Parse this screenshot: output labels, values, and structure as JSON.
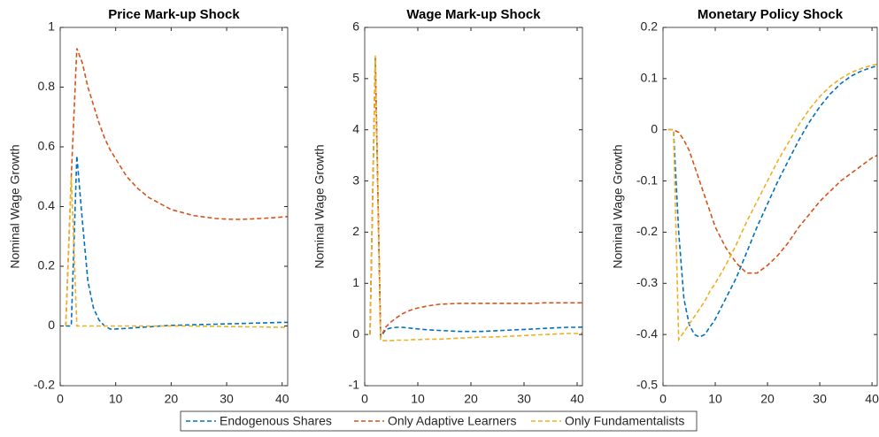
{
  "chart_data": [
    {
      "type": "line",
      "title": "Price Mark-up Shock",
      "ylabel": "Nominal Wage Growth",
      "x": [
        1,
        2,
        3,
        4,
        5,
        6,
        7,
        8,
        9,
        10,
        12,
        14,
        16,
        18,
        20,
        22,
        24,
        26,
        28,
        30,
        32,
        34,
        36,
        38,
        40,
        42
      ],
      "xlim": [
        0,
        41
      ],
      "xticks": [
        0,
        10,
        20,
        30,
        40
      ],
      "ylim": [
        -0.2,
        1
      ],
      "yticks": [
        -0.2,
        0,
        0.2,
        0.4,
        0.6,
        0.8,
        1
      ],
      "series": [
        {
          "name": "Endogenous Shares",
          "color": "#0072bd",
          "values": [
            0,
            0,
            0.57,
            0.35,
            0.15,
            0.06,
            0.02,
            0,
            -0.01,
            -0.01,
            -0.008,
            -0.005,
            -0.003,
            0,
            0.002,
            0.003,
            0.004,
            0.005,
            0.006,
            0.007,
            0.008,
            0.009,
            0.01,
            0.011,
            0.012,
            0.012
          ]
        },
        {
          "name": "Only Adaptive Learners",
          "color": "#d95319",
          "values": [
            0,
            0.5,
            0.93,
            0.88,
            0.8,
            0.74,
            0.68,
            0.63,
            0.59,
            0.56,
            0.5,
            0.46,
            0.43,
            0.41,
            0.39,
            0.38,
            0.37,
            0.365,
            0.36,
            0.358,
            0.357,
            0.358,
            0.36,
            0.362,
            0.365,
            0.368
          ]
        },
        {
          "name": "Only Fundamentalists",
          "color": "#edb120",
          "values": [
            0,
            0.5,
            0,
            0,
            0,
            0,
            0,
            0,
            0,
            0,
            0,
            0,
            0,
            0,
            0,
            0,
            0,
            -0.001,
            -0.001,
            -0.002,
            -0.002,
            -0.003,
            -0.003,
            -0.004,
            -0.004,
            -0.005
          ]
        }
      ]
    },
    {
      "type": "line",
      "title": "Wage Mark-up Shock",
      "ylabel": "Nominal Wage Growth",
      "x": [
        1,
        2,
        3,
        4,
        5,
        6,
        7,
        8,
        9,
        10,
        12,
        14,
        16,
        18,
        20,
        22,
        24,
        26,
        28,
        30,
        32,
        34,
        36,
        38,
        40,
        42
      ],
      "xlim": [
        0,
        41
      ],
      "xticks": [
        0,
        10,
        20,
        30,
        40
      ],
      "ylim": [
        -1,
        6
      ],
      "yticks": [
        -1,
        0,
        1,
        2,
        3,
        4,
        5,
        6
      ],
      "series": [
        {
          "color": "#0072bd",
          "values": [
            0,
            5.4,
            -0.05,
            0.1,
            0.13,
            0.14,
            0.14,
            0.13,
            0.12,
            0.11,
            0.09,
            0.08,
            0.07,
            0.06,
            0.06,
            0.06,
            0.07,
            0.08,
            0.09,
            0.1,
            0.11,
            0.12,
            0.13,
            0.14,
            0.14,
            0.15
          ]
        },
        {
          "color": "#d95319",
          "values": [
            0,
            5.4,
            -0.05,
            0.15,
            0.25,
            0.33,
            0.4,
            0.45,
            0.49,
            0.52,
            0.56,
            0.59,
            0.6,
            0.61,
            0.61,
            0.61,
            0.61,
            0.61,
            0.61,
            0.61,
            0.61,
            0.62,
            0.62,
            0.62,
            0.62,
            0.62
          ]
        },
        {
          "color": "#edb120",
          "values": [
            0,
            5.45,
            -0.12,
            -0.12,
            -0.12,
            -0.11,
            -0.11,
            -0.11,
            -0.1,
            -0.1,
            -0.09,
            -0.09,
            -0.08,
            -0.07,
            -0.06,
            -0.05,
            -0.05,
            -0.04,
            -0.03,
            -0.02,
            -0.01,
            0,
            0.01,
            0.02,
            0.02,
            0.03
          ]
        }
      ]
    },
    {
      "type": "line",
      "title": "Monetary Policy Shock",
      "ylabel": "Nominal Wage Growth",
      "x": [
        1,
        2,
        3,
        4,
        5,
        6,
        7,
        8,
        9,
        10,
        12,
        14,
        16,
        18,
        20,
        22,
        24,
        26,
        28,
        30,
        32,
        34,
        36,
        38,
        40,
        42
      ],
      "xlim": [
        0,
        41
      ],
      "xticks": [
        0,
        10,
        20,
        30,
        40
      ],
      "ylim": [
        -0.5,
        0.2
      ],
      "yticks": [
        -0.5,
        -0.4,
        -0.3,
        -0.2,
        -0.1,
        0,
        0.1,
        0.2
      ],
      "series": [
        {
          "color": "#0072bd",
          "values": [
            0,
            0,
            -0.2,
            -0.33,
            -0.38,
            -0.4,
            -0.405,
            -0.4,
            -0.385,
            -0.37,
            -0.33,
            -0.29,
            -0.24,
            -0.19,
            -0.145,
            -0.1,
            -0.06,
            -0.02,
            0.015,
            0.045,
            0.07,
            0.09,
            0.105,
            0.115,
            0.122,
            0.127
          ]
        },
        {
          "color": "#d95319",
          "values": [
            0,
            0,
            -0.005,
            -0.02,
            -0.04,
            -0.07,
            -0.1,
            -0.13,
            -0.16,
            -0.19,
            -0.23,
            -0.26,
            -0.28,
            -0.28,
            -0.265,
            -0.245,
            -0.22,
            -0.19,
            -0.165,
            -0.14,
            -0.12,
            -0.1,
            -0.085,
            -0.07,
            -0.055,
            -0.045
          ]
        },
        {
          "color": "#edb120",
          "values": [
            0,
            0,
            -0.41,
            -0.395,
            -0.38,
            -0.365,
            -0.35,
            -0.335,
            -0.315,
            -0.3,
            -0.265,
            -0.225,
            -0.18,
            -0.14,
            -0.1,
            -0.06,
            -0.025,
            0.01,
            0.04,
            0.065,
            0.085,
            0.1,
            0.112,
            0.12,
            0.126,
            0.13
          ]
        }
      ]
    }
  ]
}
